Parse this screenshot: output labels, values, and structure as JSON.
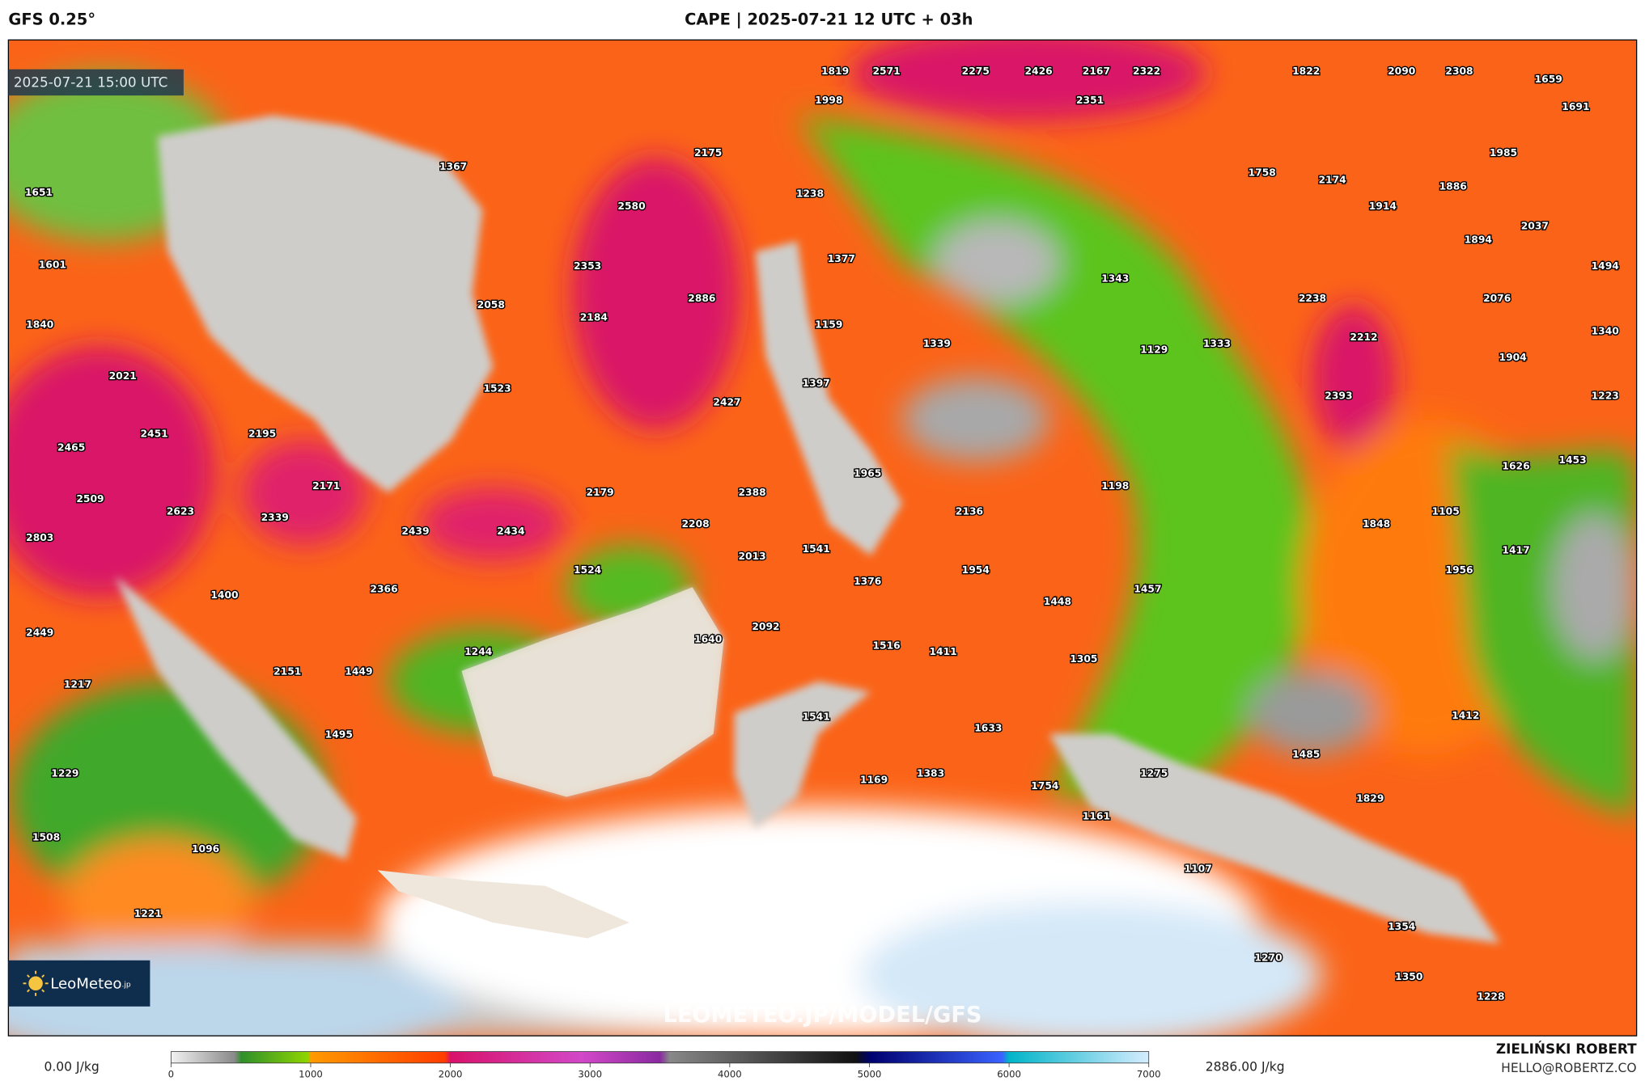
{
  "header": {
    "model": "GFS 0.25°",
    "title": "CAPE | 2025-07-21 12 UTC + 03h"
  },
  "map": {
    "valid_time": "2025-07-21 15:00 UTC",
    "watermark": "LEOMETEO.JP/MODEL/GFS",
    "logo": {
      "name": "LeoMeteo",
      "suffix": ".jp"
    },
    "cape_labels": [
      1819,
      2571,
      2275,
      2426,
      2167,
      2322,
      1822,
      2090,
      2308,
      1659,
      1998,
      2351,
      1691,
      1367,
      2175,
      1985,
      1651,
      1238,
      1758,
      2174,
      1886,
      1914,
      2580,
      2037,
      1894,
      1601,
      2353,
      1377,
      1343,
      1494,
      2058,
      2886,
      2238,
      2076,
      1840,
      2184,
      1159,
      1339,
      1129,
      1333,
      2212,
      1340,
      2021,
      1523,
      1397,
      1904,
      1223,
      2427,
      2393,
      2451,
      2195,
      2465,
      1626,
      1453,
      1965,
      1198,
      2171,
      2179,
      2388,
      2509,
      2623,
      2339,
      2136,
      1848,
      1105,
      2803,
      2439,
      2434,
      2208,
      1541,
      2013,
      1417,
      1524,
      1954,
      1376,
      1956,
      1400,
      2366,
      1457,
      1448,
      2449,
      2092,
      1640,
      1516,
      1411,
      1244,
      1305,
      2151,
      1449,
      1217,
      1541,
      1633,
      1412,
      1495,
      1485,
      1229,
      1169,
      1383,
      1754,
      1275,
      1829,
      1161,
      1508,
      1096,
      1107,
      1221,
      1354,
      1270,
      1350,
      1228
    ]
  },
  "footer": {
    "min_label": "0.00 J/kg",
    "max_label": "2886.00 J/kg",
    "author": "ZIELIŃSKI ROBERT",
    "contact": "HELLO@ROBERTZ.CO",
    "colorbar": {
      "range": [
        0,
        7000
      ],
      "ticks": [
        0,
        1000,
        2000,
        3000,
        4000,
        5000,
        6000,
        7000
      ]
    }
  }
}
